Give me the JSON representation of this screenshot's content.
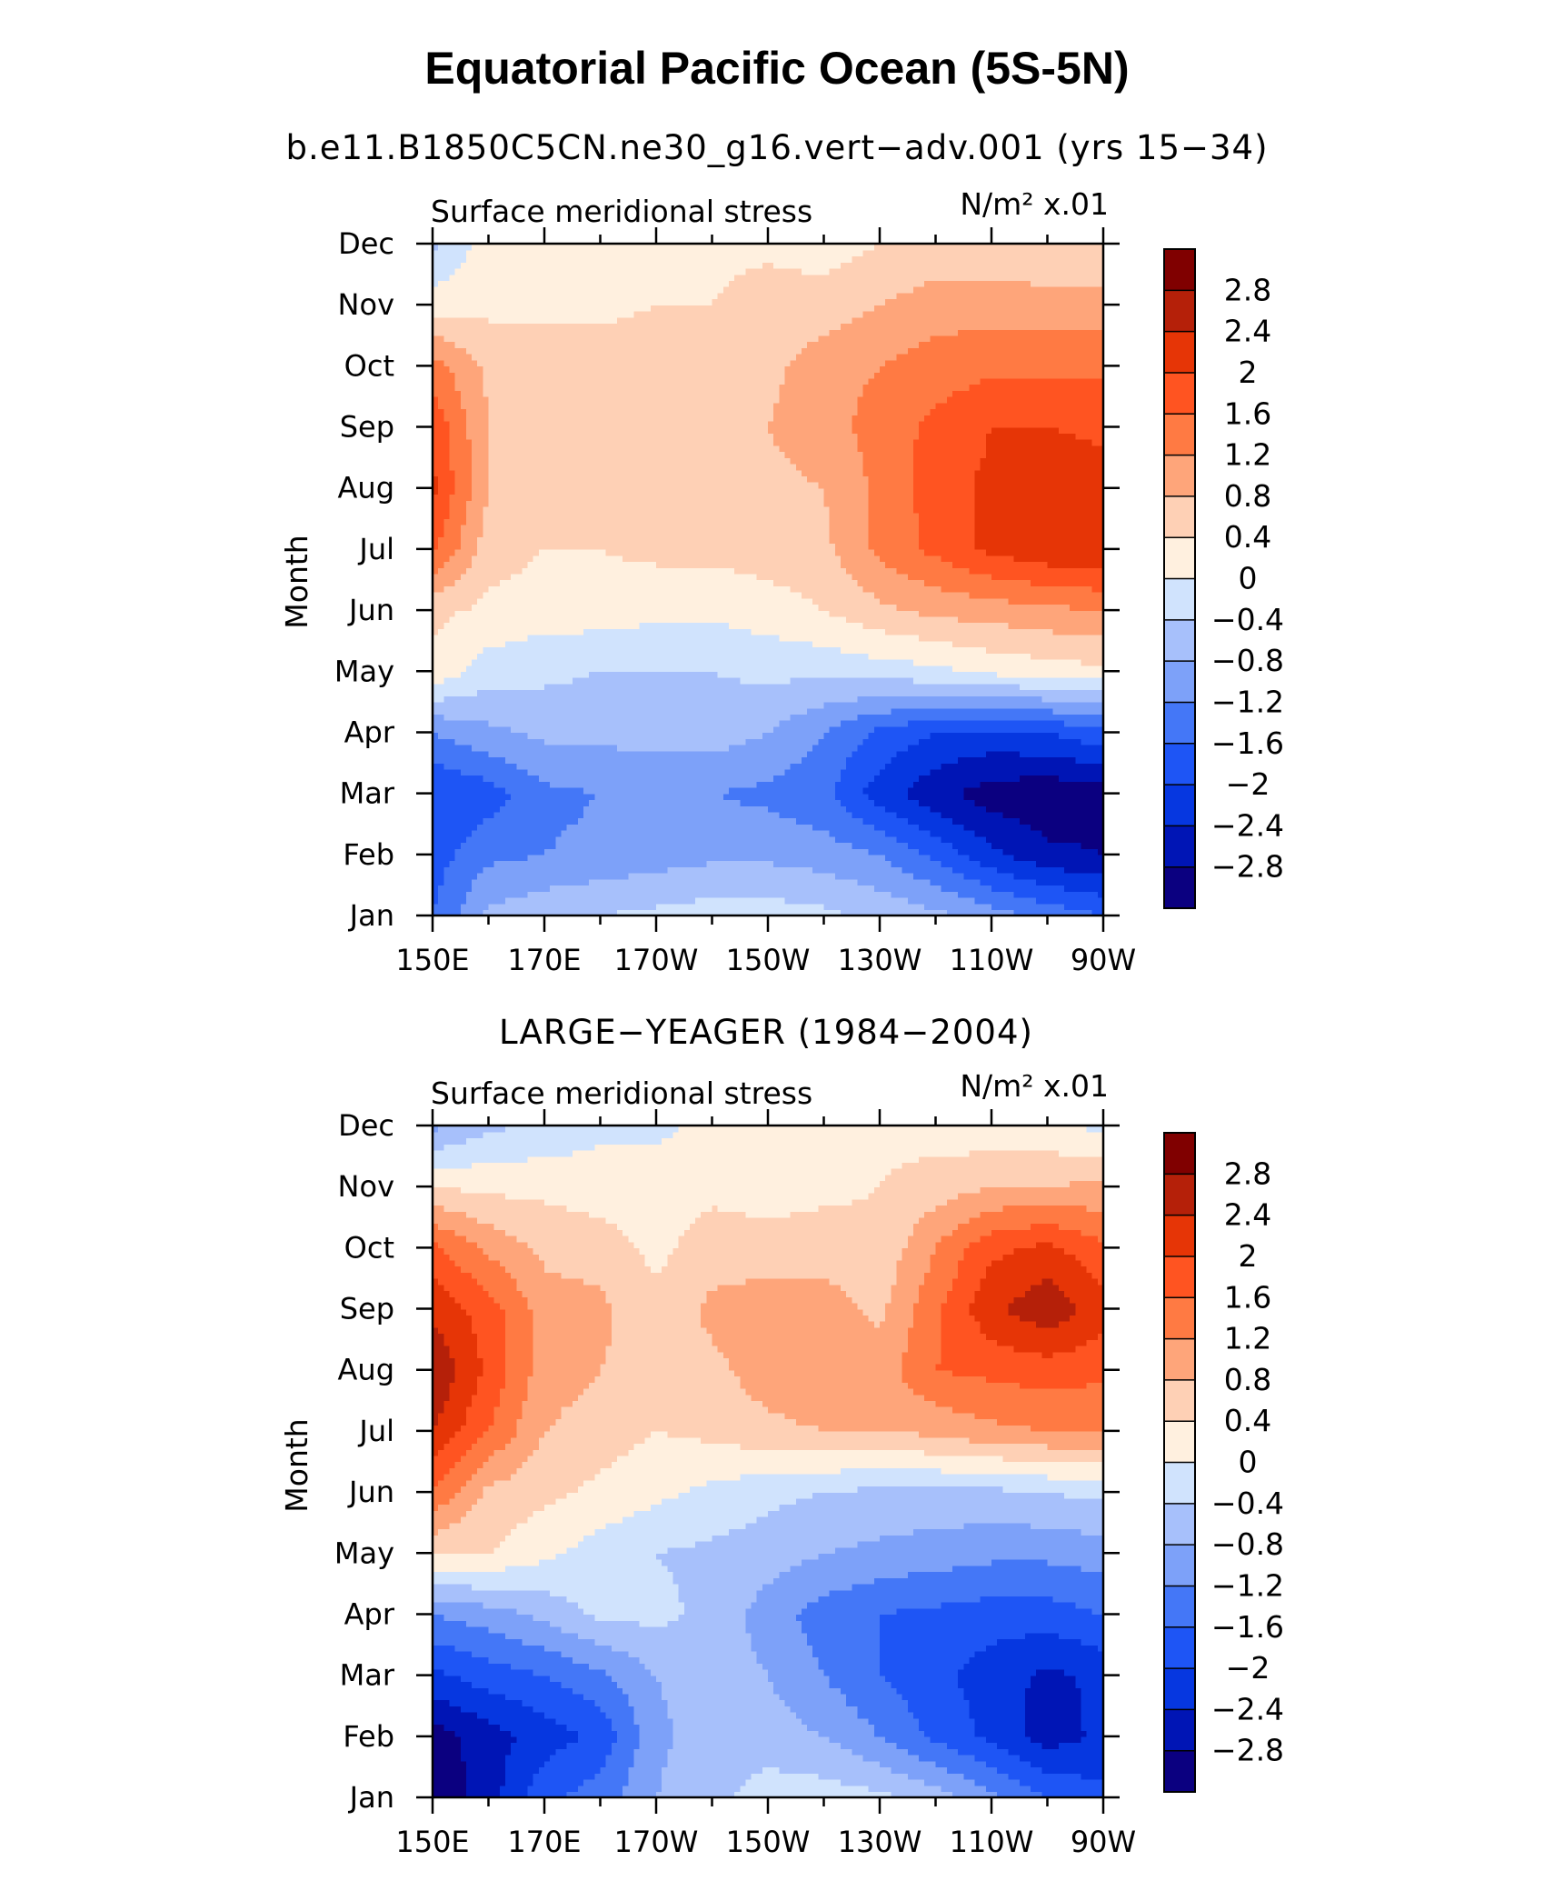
{
  "title": "Equatorial Pacific Ocean (5S-5N)",
  "colors": {
    "levels": [
      "#0b0080",
      "#0015b5",
      "#0637e0",
      "#1e55f5",
      "#4477f7",
      "#7da1f9",
      "#a7c0fb",
      "#d0e3fd",
      "#fff0df",
      "#fed0b5",
      "#fea57a",
      "#ff7a43",
      "#ff5421",
      "#e63506",
      "#b52009",
      "#800000"
    ]
  },
  "colorbar": {
    "labels": [
      "2.8",
      "2.4",
      "2",
      "1.6",
      "1.2",
      "0.8",
      "0.4",
      "0",
      "−0.4",
      "−0.8",
      "−1.2",
      "−1.6",
      "−2",
      "−2.4",
      "−2.8"
    ]
  },
  "chart_data": [
    {
      "type": "heatmap",
      "title": "b.e11.B1850C5CN.ne30_g16.vert−adv.001 (yrs 15−34)",
      "left_label": "Surface meridional stress",
      "right_label": "N/m² x.01",
      "xlabel": "",
      "ylabel": "Month",
      "x_ticklabels": [
        "150E",
        "170E",
        "170W",
        "150W",
        "130W",
        "110W",
        "90W"
      ],
      "y_ticklabels": [
        "Jan",
        "Feb",
        "Mar",
        "Apr",
        "May",
        "Jun",
        "Jul",
        "Aug",
        "Sep",
        "Oct",
        "Nov",
        "Dec"
      ],
      "x_lon": [
        150,
        160,
        170,
        180,
        190,
        200,
        210,
        220,
        230,
        240,
        250,
        260,
        270
      ],
      "levels": [
        -2.8,
        -2.4,
        -2,
        -1.6,
        -1.2,
        -0.8,
        -0.4,
        0,
        0.4,
        0.8,
        1.2,
        1.6,
        2,
        2.4,
        2.8
      ],
      "values": [
        [
          -1.6,
          -0.7,
          -0.5,
          -0.4,
          -0.3,
          -0.2,
          -0.2,
          -0.3,
          -0.5,
          -0.7,
          -1.0,
          -1.3,
          -1.6
        ],
        [
          -1.8,
          -1.3,
          -1.2,
          -1.1,
          -1.0,
          -0.9,
          -0.9,
          -1.0,
          -1.2,
          -1.7,
          -2.3,
          -2.7,
          -2.8
        ],
        [
          -2.0,
          -1.8,
          -1.3,
          -1.2,
          -1.2,
          -1.2,
          -1.3,
          -1.5,
          -2.2,
          -2.7,
          -3.0,
          -3.1,
          -3.0
        ],
        [
          -1.2,
          -0.9,
          -0.7,
          -0.7,
          -0.6,
          -0.6,
          -0.8,
          -1.2,
          -1.7,
          -2.0,
          -2.1,
          -2.0,
          -1.7
        ],
        [
          0.3,
          -0.2,
          -0.3,
          -0.4,
          -0.4,
          -0.4,
          -0.3,
          -0.3,
          -0.2,
          -0.1,
          0.1,
          0.2,
          0.3
        ],
        [
          0.5,
          0.3,
          0.2,
          0.2,
          0.1,
          0.1,
          0.2,
          0.4,
          0.7,
          0.9,
          1.0,
          1.1,
          1.2
        ],
        [
          1.7,
          0.6,
          0.4,
          0.4,
          0.5,
          0.5,
          0.6,
          0.7,
          1.3,
          1.7,
          2.1,
          2.3,
          2.4
        ],
        [
          2.1,
          0.8,
          0.6,
          0.6,
          0.6,
          0.6,
          0.7,
          0.8,
          1.3,
          1.8,
          2.1,
          2.4,
          2.2
        ],
        [
          1.9,
          0.8,
          0.6,
          0.6,
          0.6,
          0.6,
          0.8,
          1.0,
          1.4,
          1.7,
          2.0,
          2.0,
          1.9
        ],
        [
          1.4,
          0.7,
          0.6,
          0.6,
          0.6,
          0.6,
          0.7,
          1.0,
          1.2,
          1.4,
          1.5,
          1.5,
          1.5
        ],
        [
          0.2,
          0.3,
          0.3,
          0.3,
          0.4,
          0.4,
          0.6,
          0.6,
          0.8,
          1.0,
          1.0,
          1.0,
          1.0
        ],
        [
          -0.5,
          0.2,
          0.2,
          0.2,
          0.3,
          0.3,
          0.3,
          0.2,
          0.4,
          0.5,
          0.5,
          0.4,
          0.4
        ]
      ]
    },
    {
      "type": "heatmap",
      "title": "LARGE−YEAGER (1984−2004)",
      "left_label": "Surface meridional stress",
      "right_label": "N/m² x.01",
      "xlabel": "",
      "ylabel": "Month",
      "x_ticklabels": [
        "150E",
        "170E",
        "170W",
        "150W",
        "130W",
        "110W",
        "90W"
      ],
      "y_ticklabels": [
        "Jan",
        "Feb",
        "Mar",
        "Apr",
        "May",
        "Jun",
        "Jul",
        "Aug",
        "Sep",
        "Oct",
        "Nov",
        "Dec"
      ],
      "x_lon": [
        150,
        160,
        170,
        180,
        190,
        200,
        210,
        220,
        230,
        240,
        250,
        260,
        270
      ],
      "levels": [
        -2.8,
        -2.4,
        -2,
        -1.6,
        -1.2,
        -0.8,
        -0.4,
        0,
        0.4,
        0.8,
        1.2,
        1.6,
        2,
        2.4,
        2.8
      ],
      "values": [
        [
          -3.1,
          -2.6,
          -1.7,
          -1.4,
          -0.8,
          -0.5,
          -0.2,
          -0.2,
          -0.3,
          -0.6,
          -1.1,
          -1.6,
          -1.9
        ],
        [
          -3.0,
          -2.6,
          -2.2,
          -1.9,
          -0.9,
          -0.6,
          -0.6,
          -0.8,
          -1.2,
          -1.7,
          -2.1,
          -2.6,
          -2.3
        ],
        [
          -2.1,
          -1.8,
          -1.6,
          -1.3,
          -0.8,
          -0.6,
          -0.8,
          -1.2,
          -1.6,
          -1.9,
          -2.2,
          -2.5,
          -2.3
        ],
        [
          -1.2,
          -1.0,
          -0.7,
          -0.3,
          -0.3,
          -0.5,
          -1.0,
          -1.4,
          -1.6,
          -1.7,
          -1.8,
          -1.8,
          -1.6
        ],
        [
          0.4,
          0.4,
          0.1,
          -0.2,
          -0.4,
          -0.5,
          -0.6,
          -0.8,
          -0.9,
          -1.0,
          -1.1,
          -1.1,
          -1.0
        ],
        [
          1.6,
          0.7,
          0.5,
          0.3,
          0.1,
          -0.1,
          -0.3,
          -0.4,
          -0.5,
          -0.5,
          -0.5,
          -0.4,
          -0.3
        ],
        [
          2.4,
          1.6,
          0.8,
          0.6,
          0.4,
          0.5,
          0.7,
          0.8,
          0.8,
          0.9,
          1.1,
          1.2,
          1.2
        ],
        [
          2.8,
          1.9,
          1.0,
          0.8,
          0.6,
          0.7,
          1.0,
          1.1,
          1.0,
          1.6,
          1.7,
          1.8,
          1.7
        ],
        [
          2.3,
          1.8,
          1.0,
          0.9,
          0.5,
          0.9,
          1.0,
          1.0,
          0.7,
          1.5,
          2.3,
          2.7,
          2.2
        ],
        [
          1.7,
          1.1,
          0.7,
          0.6,
          0.3,
          0.6,
          0.6,
          0.6,
          0.5,
          1.2,
          1.9,
          2.1,
          1.7
        ],
        [
          0.4,
          0.3,
          0.3,
          0.2,
          0.2,
          0.3,
          0.2,
          0.3,
          0.4,
          0.6,
          0.8,
          0.8,
          0.9
        ],
        [
          -0.9,
          -0.5,
          -0.3,
          -0.1,
          -0.1,
          0.1,
          0.1,
          0.2,
          0.3,
          0.2,
          0.1,
          0.1,
          -0.1
        ]
      ]
    }
  ]
}
